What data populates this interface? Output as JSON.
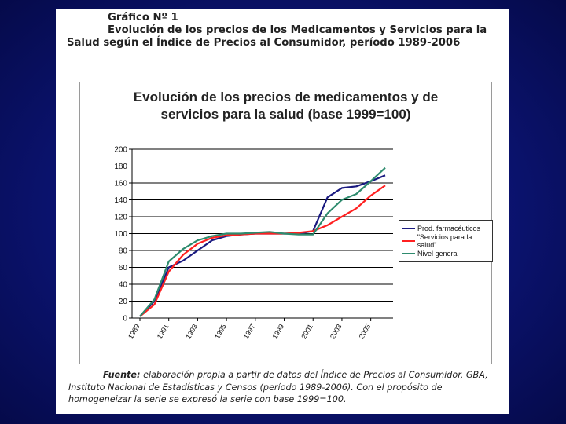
{
  "caption": {
    "number": "Gráfico Nº 1",
    "title": "Evolución de los precios de los Medicamentos y Servicios para la Salud según el Índice de Precios al Consumidor, período 1989-2006"
  },
  "chart_data": {
    "type": "line",
    "title_lines": [
      "Evolución de los precios de medicamentos y de",
      "servicios para la salud (base 1999=100)"
    ],
    "x": [
      1989,
      1990,
      1991,
      1992,
      1993,
      1994,
      1995,
      1996,
      1997,
      1998,
      1999,
      2000,
      2001,
      2002,
      2003,
      2004,
      2005,
      2006
    ],
    "x_tick_labels": [
      "1989",
      "1991",
      "1993",
      "1995",
      "1997",
      "1999",
      "2001",
      "2003",
      "2005"
    ],
    "ylim": [
      0,
      200
    ],
    "y_ticks": [
      0,
      20,
      40,
      60,
      80,
      100,
      120,
      140,
      160,
      180,
      200
    ],
    "grid": true,
    "legend_position": "right",
    "series": [
      {
        "name": "Prod. farmacéuticos",
        "color": "#1a1a80",
        "values": [
          2,
          20,
          60,
          68,
          80,
          92,
          97,
          99,
          100,
          100,
          100,
          100,
          103,
          143,
          154,
          156,
          162,
          169
        ]
      },
      {
        "name": "\"Servicios para la salud\"",
        "color": "#ff2020",
        "values": [
          2,
          16,
          55,
          75,
          88,
          95,
          98,
          99,
          100,
          100,
          100,
          101,
          103,
          110,
          120,
          130,
          145,
          157
        ]
      },
      {
        "name": "Nivel general",
        "color": "#2e8b6e",
        "values": [
          2,
          22,
          67,
          82,
          92,
          97,
          100,
          100,
          101,
          102,
          100,
          99,
          99,
          124,
          140,
          147,
          162,
          178
        ]
      }
    ]
  },
  "source": {
    "label": "Fuente:",
    "text": "elaboración propia a partir de datos del Índice de Precios al Consumidor, GBA, Instituto Nacional de Estadísticas y Censos (período 1989-2006). Con el propósito de homogeneizar la serie se expresó la serie con base 1999=100."
  }
}
